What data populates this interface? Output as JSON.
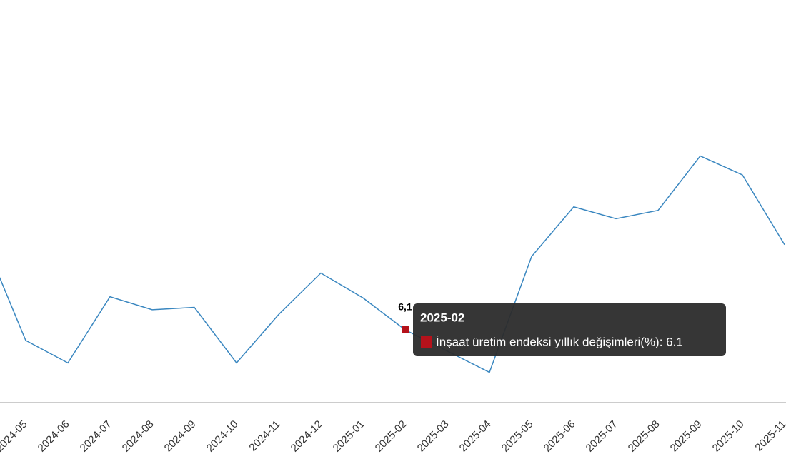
{
  "chart_data": {
    "type": "line",
    "categories": [
      null,
      "2024-05",
      "2024-06",
      "2024-07",
      "2024-08",
      "2024-09",
      "2024-10",
      "2024-11",
      "2024-12",
      "2025-01",
      "2025-02",
      "2025-03",
      "2025-04",
      "2025-05",
      "2025-06",
      "2025-07",
      "2025-08",
      "2025-09",
      "2025-10",
      "2025-11"
    ],
    "series": [
      {
        "name": "İnşaat üretim endeksi yıllık değişimleri(%)",
        "color": "#3a87c0",
        "values": [
          13.8,
          5.2,
          3.3,
          8.9,
          7.8,
          8.0,
          3.3,
          7.4,
          10.9,
          8.8,
          6.1,
          4.3,
          2.5,
          12.3,
          16.5,
          15.5,
          16.2,
          20.8,
          19.2,
          13.3
        ],
        "value_labels": [
          null,
          null,
          null,
          null,
          null,
          null,
          null,
          null,
          null,
          null,
          "6,1",
          null,
          null,
          null,
          null,
          null,
          null,
          null,
          null,
          null
        ]
      }
    ],
    "ylim": [
      0,
      34
    ],
    "marker_color": "#b5121b",
    "tooltip": {
      "title": "2025-02",
      "text": "İnşaat üretim endeksi yıllık değişimleri(%): 6.1"
    }
  }
}
